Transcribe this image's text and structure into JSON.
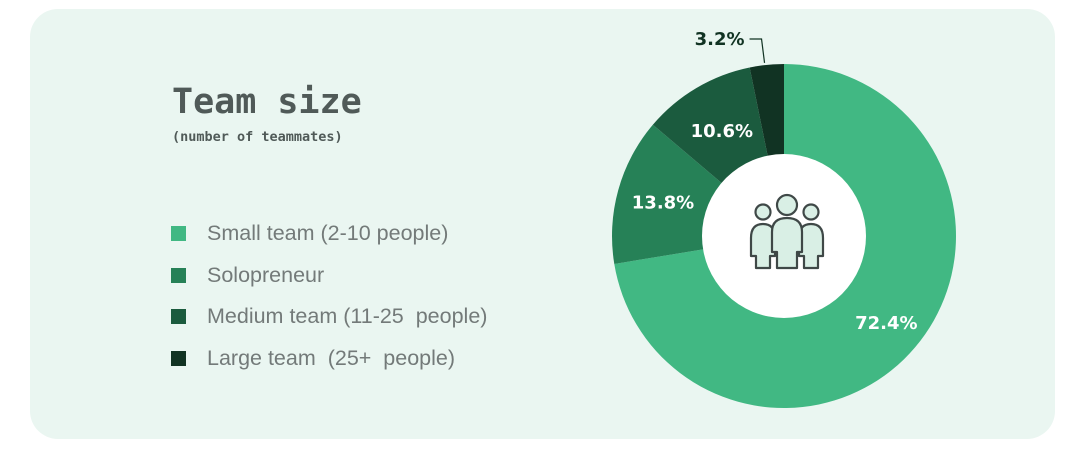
{
  "chart_data": {
    "type": "pie",
    "style": "donut",
    "title": "Team size",
    "subtitle": "(number of teammates)",
    "legend_position": "left",
    "center_icon": "team-people-icon",
    "slices": [
      {
        "label": "Small team (2-10 people)",
        "value": 72.4,
        "display": "72.4%",
        "color": "#41b883"
      },
      {
        "label": "Solopreneur",
        "value": 13.8,
        "display": "13.8%",
        "color": "#268157"
      },
      {
        "label": "Medium team (11-25  people)",
        "value": 10.6,
        "display": "10.6%",
        "color": "#1b5b3e"
      },
      {
        "label": "Large team  (25+  people)",
        "value": 3.2,
        "display": "3.2%",
        "color": "#113323"
      }
    ]
  }
}
